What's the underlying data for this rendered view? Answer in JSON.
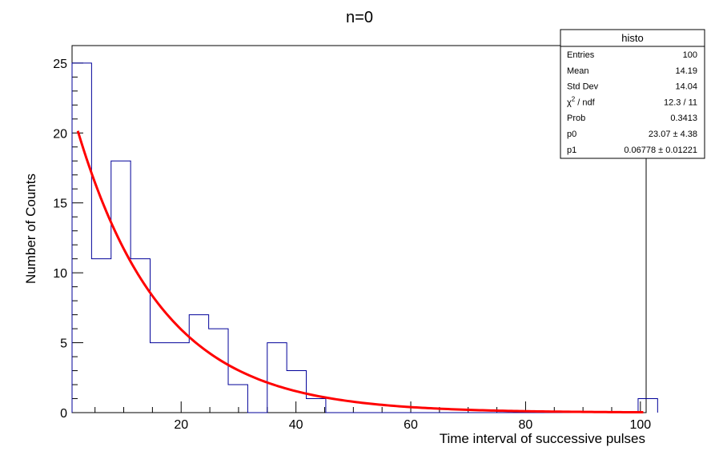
{
  "chart_data": {
    "type": "bar",
    "title": "n=0",
    "xlabel": "Time interval of successive pulses",
    "ylabel": "Number of Counts",
    "xlim": [
      1,
      101
    ],
    "ylim": [
      0,
      26.25
    ],
    "grid": false,
    "legend": "none",
    "bin_width": 3.4,
    "bins_low_edge_start": 1,
    "values": [
      25,
      11,
      18,
      11,
      5,
      5,
      7,
      6,
      2,
      0,
      5,
      3,
      1,
      0,
      0,
      0,
      0,
      0,
      0,
      0,
      0,
      0,
      0,
      0,
      0,
      0,
      0,
      0,
      0,
      1
    ],
    "x_ticks": [
      "20",
      "40",
      "60",
      "80",
      "100"
    ],
    "y_ticks": [
      "0",
      "5",
      "10",
      "15",
      "20",
      "25"
    ],
    "fit": {
      "function": "p0*exp(-p1*x)",
      "p0": 23.07,
      "p1": 0.06778,
      "color": "#ff0000"
    },
    "histogram_color": "#000099"
  },
  "stats": {
    "title": "histo",
    "rows": [
      {
        "label": "Entries",
        "value": "100"
      },
      {
        "label": "Mean",
        "value": "14.19"
      },
      {
        "label": "Std Dev",
        "value": "14.04"
      },
      {
        "label": "χ",
        "sup": "2",
        "label_tail": " / ndf",
        "value": "12.3 / 11"
      },
      {
        "label": "Prob",
        "value": "0.3413"
      },
      {
        "label": "p0",
        "value": "23.07 ± 4.38"
      },
      {
        "label": "p1",
        "value": "0.06778 ± 0.01221"
      }
    ]
  }
}
